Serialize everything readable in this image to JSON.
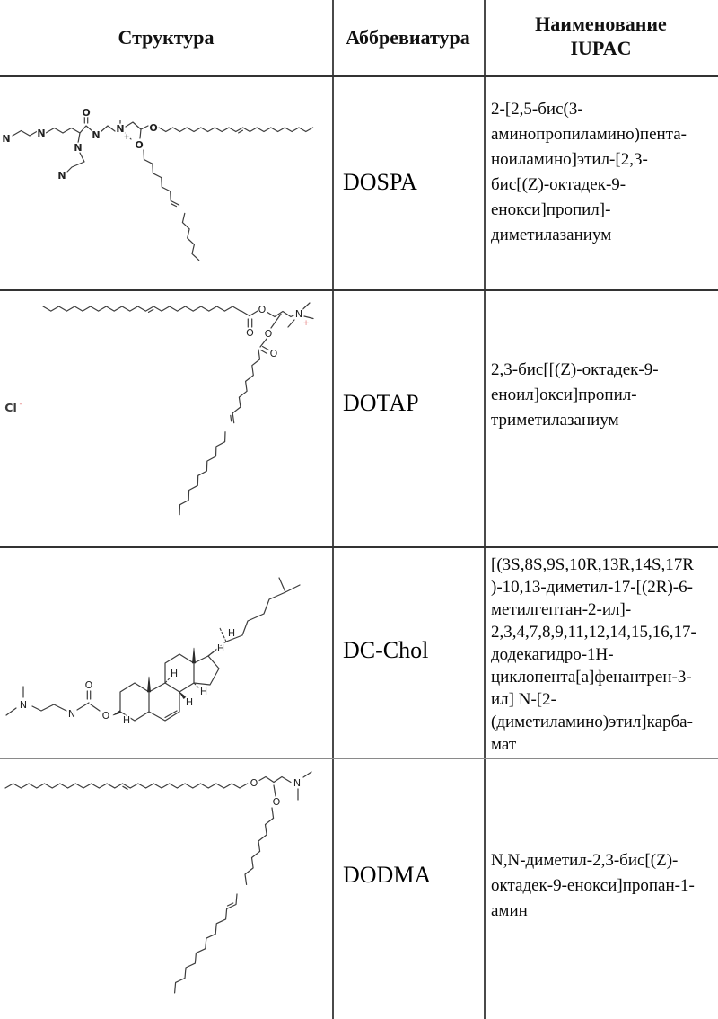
{
  "header": {
    "col_structure": "Структура",
    "col_abbreviation": "Аббревиатура",
    "col_iupac": "Наименование\nIUPAC"
  },
  "rows": [
    {
      "abbr": "DOSPA",
      "iupac": "2-[2,5-бис(3-\nаминопропиламино)пента-\nноиламино]этил-[2,3-\nбис[(Z)-октадек-9-\nенокси]пропил]-\nдиметилазаниум",
      "structure": {
        "description": "skeletal formula of DOSPA lipid",
        "atoms": {
          "n1": "N",
          "n2": "N",
          "n3": "N",
          "n4": "N",
          "o_carbonyl": "O",
          "n_amide": "N",
          "n_quat": "N",
          "plus": "+",
          "o1": "O",
          "o2": "O"
        }
      }
    },
    {
      "abbr": "DOTAP",
      "iupac": "2,3-бис[[(Z)-октадек-9-\nеноил]окси]пропил-\nтриметилазаниум",
      "structure": {
        "description": "skeletal formula of DOTAP lipid with chloride counterion",
        "atoms": {
          "o_ester1": "O",
          "o_carbonyl1": "O",
          "n_quat": "N",
          "plus": "+",
          "o_ester2": "O",
          "o_carbonyl2": "O",
          "cl": "Cl",
          "minus": "-"
        }
      }
    },
    {
      "abbr": "DC-Chol",
      "iupac": "[(3S,8S,9S,10R,13R,14S,17R\n)-10,13-диметил-17-[(2R)-6-\nметилгептан-2-ил]-\n2,3,4,7,8,9,11,12,14,15,16,17-\nдодекагидро-1H-\nциклопента[a]фенантрен-3-\nил] N-[2-\n(диметиламино)этил]карба-\nмат",
      "structure": {
        "description": "skeletal formula of DC-Cholesterol carbamate",
        "atoms": {
          "n1": "N",
          "n2": "N",
          "o_carbonyl": "O",
          "o_ester": "O",
          "h_c3": "H",
          "h_c8": "H",
          "h_c9": "H",
          "h_c14": "H",
          "h_c17": "H",
          "h_c20": "H"
        }
      }
    },
    {
      "abbr": "DODMA",
      "iupac": "N,N-диметил-2,3-бис[(Z)-\nоктадек-9-енокси]пропан-1-\nамин",
      "structure": {
        "description": "skeletal formula of DODMA lipid",
        "atoms": {
          "o1": "O",
          "o2": "O",
          "n": "N"
        }
      }
    }
  ]
}
